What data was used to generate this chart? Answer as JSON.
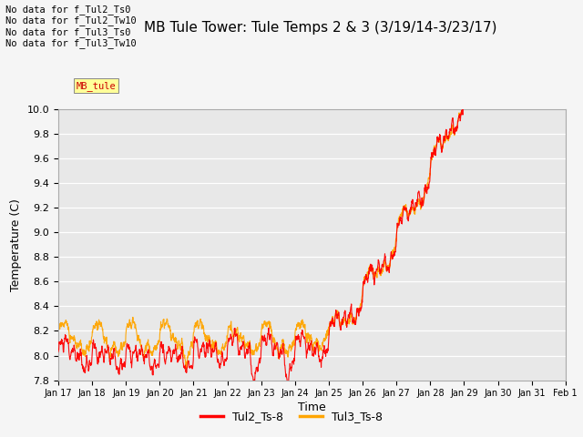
{
  "title": "MB Tule Tower: Tule Temps 2 & 3 (3/19/14-3/23/17)",
  "xlabel": "Time",
  "ylabel": "Temperature (C)",
  "ylim": [
    7.8,
    10.0
  ],
  "xlim": [
    0,
    15
  ],
  "xtick_labels": [
    "Jan 17",
    "Jan 18",
    "Jan 19",
    "Jan 20",
    "Jan 21",
    "Jan 22",
    "Jan 23",
    "Jan 24",
    "Jan 25",
    "Jan 26",
    "Jan 27",
    "Jan 28",
    "Jan 29",
    "Jan 30",
    "Jan 31",
    "Feb 1"
  ],
  "legend_labels": [
    "Tul2_Ts-8",
    "Tul3_Ts-8"
  ],
  "legend_colors": [
    "#ff0000",
    "#ffa500"
  ],
  "plot_bg_color": "#e8e8e8",
  "fig_bg_color": "#f5f5f5",
  "annotation_lines": [
    "No data for f_Tul2_Ts0",
    "No data for f_Tul2_Tw10",
    "No data for f_Tul3_Ts0",
    "No data for f_Tul3_Tw10"
  ],
  "tul2_color": "#ff0000",
  "tul3_color": "#ffa500",
  "line_width": 0.8,
  "title_fontsize": 11,
  "yticks": [
    7.8,
    8.0,
    8.2,
    8.4,
    8.6,
    8.8,
    9.0,
    9.2,
    9.4,
    9.6,
    9.8,
    10.0
  ]
}
